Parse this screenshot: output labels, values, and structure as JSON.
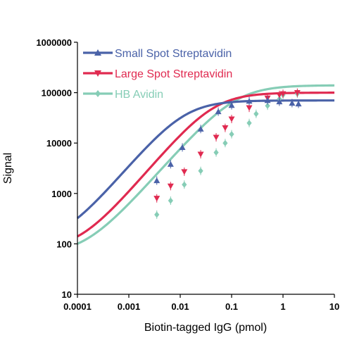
{
  "chart_data": {
    "type": "scatter",
    "xscale": "log",
    "yscale": "log",
    "xlabel": "Biotin-tagged IgG (pmol)",
    "ylabel": "Signal",
    "xlim": [
      0.0001,
      10
    ],
    "ylim": [
      10,
      1000000
    ],
    "xticks": [
      "0.0001",
      "0.001",
      "0.01",
      "0.1",
      "1",
      "10"
    ],
    "yticks": [
      "10",
      "100",
      "1000",
      "10000",
      "100000",
      "1000000"
    ],
    "grid": false,
    "legend": "top-left",
    "series": [
      {
        "name": "Small Spot Streptavidin",
        "color": "#4a62a8",
        "marker": "triangle-up",
        "x": [
          0.0035,
          0.0065,
          0.011,
          0.025,
          0.055,
          0.1,
          0.22,
          0.5,
          0.85,
          1.5,
          2.0
        ],
        "y": [
          1800,
          3800,
          8200,
          19000,
          42000,
          56000,
          68000,
          70000,
          66000,
          62000,
          60000
        ],
        "fit": {
          "bottom": 100,
          "top": 70000,
          "ec50": 0.012,
          "hill": 1.2
        }
      },
      {
        "name": "Large Spot Streptavidin",
        "color": "#e02a50",
        "marker": "triangle-down",
        "x": [
          0.0035,
          0.0065,
          0.012,
          0.025,
          0.05,
          0.075,
          0.1,
          0.22,
          0.5,
          0.85,
          1.0,
          1.9
        ],
        "y": [
          800,
          1400,
          2700,
          6000,
          13000,
          20000,
          30000,
          50000,
          78000,
          90000,
          95000,
          100000
        ],
        "fit": {
          "bottom": 75,
          "top": 100000,
          "ec50": 0.045,
          "hill": 1.2
        }
      },
      {
        "name": "HB Avidin",
        "color": "#86cdb6",
        "marker": "diamond",
        "x": [
          0.0035,
          0.0065,
          0.012,
          0.025,
          0.05,
          0.075,
          0.1,
          0.22,
          0.3,
          0.5,
          0.85,
          1.0,
          1.9
        ],
        "y": [
          380,
          720,
          1500,
          2800,
          6500,
          10000,
          15000,
          25000,
          38000,
          55000,
          75000,
          90000,
          95000
        ],
        "fit": {
          "bottom": 60,
          "top": 140000,
          "ec50": 0.12,
          "hill": 1.15
        }
      }
    ]
  }
}
